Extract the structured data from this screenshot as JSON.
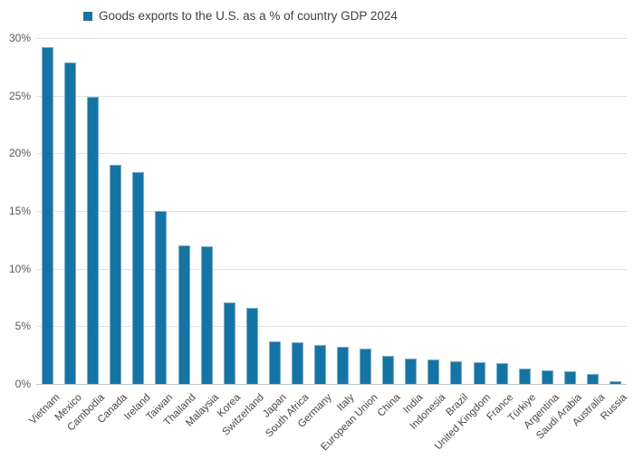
{
  "legend": {
    "label": "Goods exports to the U.S. as a % of country GDP 2024"
  },
  "colors": {
    "bar_fill": "#1375A6",
    "bar_border": "#79AFCC",
    "gridline": "#E2E2E2",
    "axis_line": "#C6C6C6",
    "ytick_text": "#595959",
    "xtick_text": "#474747",
    "legend_text": "#404040",
    "background": "#FFFFFF"
  },
  "chart_data": {
    "type": "bar",
    "title": "Goods exports to the U.S. as a % of country GDP 2024",
    "xlabel": "",
    "ylabel": "",
    "ylim": [
      0,
      30
    ],
    "grid": true,
    "legend_position": "top-left",
    "ytick_values": [
      0,
      5,
      10,
      15,
      20,
      25,
      30
    ],
    "ytick_labels": [
      "0%",
      "5%",
      "10%",
      "15%",
      "20%",
      "25%",
      "30%"
    ],
    "categories": [
      "Vietnam",
      "Mexico",
      "Cambodia",
      "Canada",
      "Ireland",
      "Taiwan",
      "Thailand",
      "Malaysia",
      "Korea",
      "Switzerland",
      "Japan",
      "South Africa",
      "Germany",
      "Italy",
      "European Union",
      "China",
      "India",
      "Indonesia",
      "Brazil",
      "United Kingdom",
      "France",
      "Türkiye",
      "Argentina",
      "Saudi Arabia",
      "Australia",
      "Russia"
    ],
    "values": [
      29.2,
      27.9,
      24.9,
      19.0,
      18.4,
      15.0,
      12.0,
      11.9,
      7.1,
      6.6,
      3.7,
      3.6,
      3.4,
      3.2,
      3.1,
      2.4,
      2.2,
      2.1,
      2.0,
      1.9,
      1.8,
      1.3,
      1.2,
      1.1,
      0.9,
      0.2
    ]
  }
}
